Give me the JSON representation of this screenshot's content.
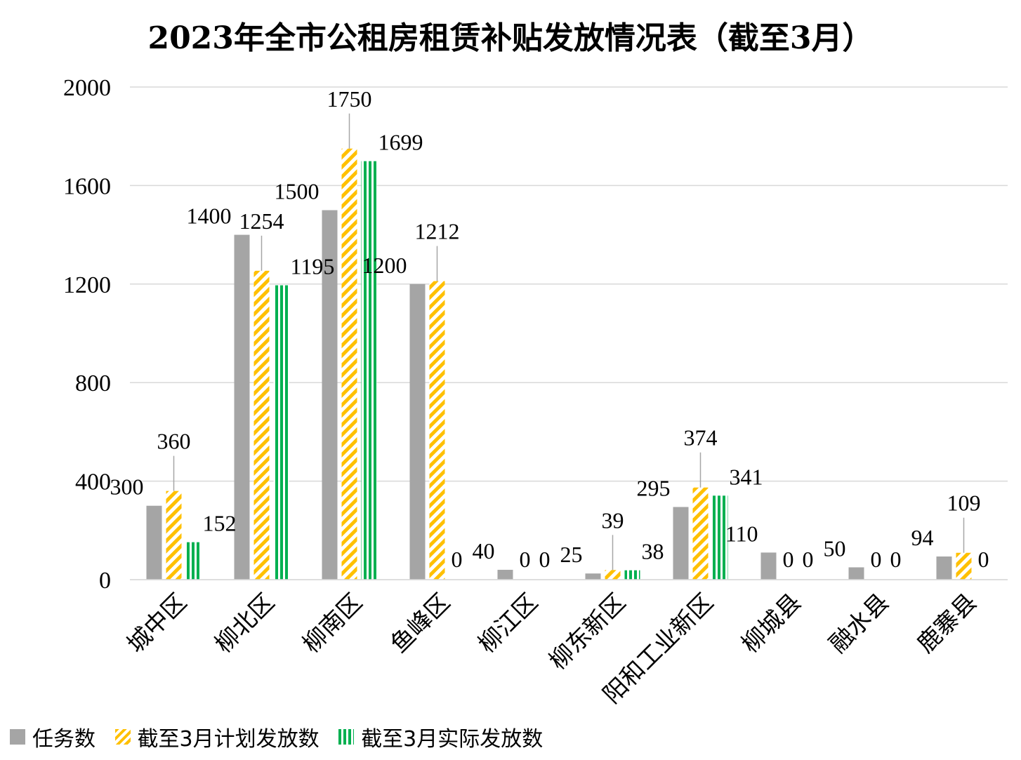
{
  "chart_data": {
    "type": "bar",
    "title": "2023年全市公租房租赁补贴发放情况表（截至3月）",
    "categories": [
      "城中区",
      "柳北区",
      "柳南区",
      "鱼峰区",
      "柳江区",
      "柳东新区",
      "阳和工业新区",
      "柳城县",
      "融水县",
      "鹿寨县"
    ],
    "series": [
      {
        "name": "任务数",
        "values": [
          300,
          1400,
          1500,
          1200,
          40,
          25,
          295,
          110,
          50,
          94
        ]
      },
      {
        "name": "截至3月计划发放数",
        "values": [
          360,
          1254,
          1750,
          1212,
          0,
          39,
          374,
          0,
          0,
          109
        ]
      },
      {
        "name": "截至3月实际发放数",
        "values": [
          152,
          1195,
          1699,
          0,
          0,
          38,
          341,
          0,
          0,
          0
        ]
      }
    ],
    "ylim": [
      0,
      2000
    ],
    "yticks": [
      0,
      400,
      800,
      1200,
      1600,
      2000
    ],
    "grid": true,
    "legend_position": "bottom-left",
    "colors": {
      "task": "#a5a5a5",
      "planned": "#ffc000",
      "actual": "#00b050"
    }
  }
}
